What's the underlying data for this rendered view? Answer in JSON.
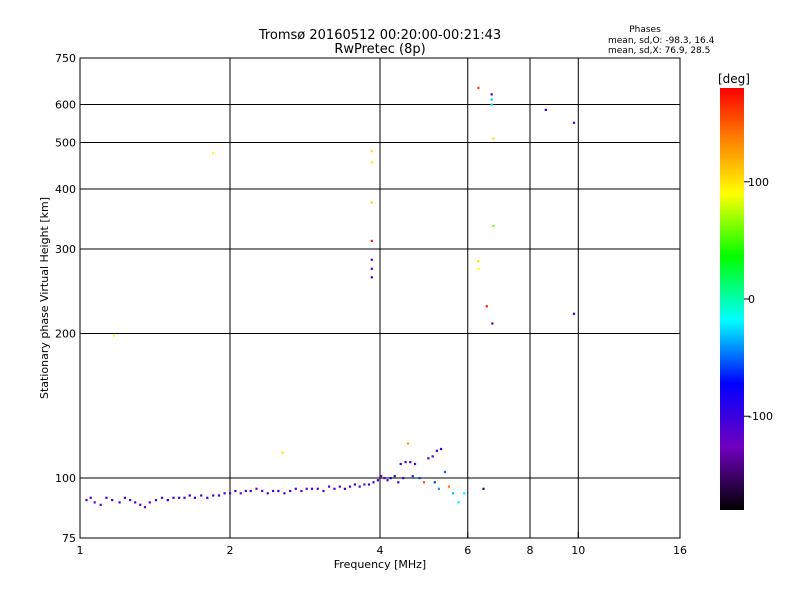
{
  "chart_data": {
    "type": "scatter",
    "title": "Tromsø 20160512 00:20:00-00:21:43",
    "subtitle": "RwPretec (8p)",
    "xlabel": "Frequency [MHz]",
    "ylabel": "Stationary phase Virtual Height [km]",
    "x_scale": "log",
    "y_scale": "log",
    "xlim": [
      1,
      16
    ],
    "ylim": [
      75,
      750
    ],
    "x_ticks": [
      1,
      2,
      4,
      6,
      8,
      10,
      16
    ],
    "x_tick_labels": [
      "1",
      "2",
      "4",
      "6",
      "8",
      "10",
      "16"
    ],
    "y_ticks": [
      75,
      100,
      200,
      300,
      400,
      500,
      600,
      750
    ],
    "y_tick_labels": [
      "75",
      "100",
      "200",
      "300",
      "400",
      "500",
      "600",
      "750"
    ],
    "grid": true,
    "stats": {
      "heading": "Phases",
      "line_o": "mean, sd,O: -98.3, 16.4",
      "line_x": "mean, sd,X:  76.9, 28.5"
    },
    "colorbar": {
      "label": "[deg]",
      "range": [
        -180,
        180
      ],
      "ticks": [
        100,
        0,
        -100
      ],
      "tick_labels": [
        "100",
        "0",
        "-100"
      ]
    },
    "points": [
      {
        "x": 1.03,
        "y": 90,
        "phase": -110
      },
      {
        "x": 1.05,
        "y": 91,
        "phase": -100
      },
      {
        "x": 1.07,
        "y": 89,
        "phase": -120
      },
      {
        "x": 1.1,
        "y": 88,
        "phase": -110
      },
      {
        "x": 1.13,
        "y": 91,
        "phase": -100
      },
      {
        "x": 1.16,
        "y": 90,
        "phase": -110
      },
      {
        "x": 1.2,
        "y": 89,
        "phase": -105
      },
      {
        "x": 1.23,
        "y": 91,
        "phase": -120
      },
      {
        "x": 1.26,
        "y": 90,
        "phase": -110
      },
      {
        "x": 1.29,
        "y": 89,
        "phase": -100
      },
      {
        "x": 1.32,
        "y": 88,
        "phase": -110
      },
      {
        "x": 1.35,
        "y": 87,
        "phase": -120
      },
      {
        "x": 1.38,
        "y": 89,
        "phase": -110
      },
      {
        "x": 1.42,
        "y": 90,
        "phase": -100
      },
      {
        "x": 1.46,
        "y": 91,
        "phase": -110
      },
      {
        "x": 1.5,
        "y": 90,
        "phase": -90
      },
      {
        "x": 1.54,
        "y": 91,
        "phase": -100
      },
      {
        "x": 1.58,
        "y": 91,
        "phase": -110
      },
      {
        "x": 1.62,
        "y": 91,
        "phase": -100
      },
      {
        "x": 1.66,
        "y": 92,
        "phase": -90
      },
      {
        "x": 1.7,
        "y": 91,
        "phase": -100
      },
      {
        "x": 1.75,
        "y": 92,
        "phase": -110
      },
      {
        "x": 1.8,
        "y": 91,
        "phase": -100
      },
      {
        "x": 1.85,
        "y": 92,
        "phase": -110
      },
      {
        "x": 1.9,
        "y": 92,
        "phase": -100
      },
      {
        "x": 1.95,
        "y": 93,
        "phase": -100
      },
      {
        "x": 2.0,
        "y": 93,
        "phase": -110
      },
      {
        "x": 2.05,
        "y": 94,
        "phase": -100
      },
      {
        "x": 2.1,
        "y": 93,
        "phase": -120
      },
      {
        "x": 2.15,
        "y": 94,
        "phase": -110
      },
      {
        "x": 2.2,
        "y": 94,
        "phase": -100
      },
      {
        "x": 2.26,
        "y": 95,
        "phase": -130
      },
      {
        "x": 2.32,
        "y": 94,
        "phase": -110
      },
      {
        "x": 2.38,
        "y": 93,
        "phase": -100
      },
      {
        "x": 2.44,
        "y": 94,
        "phase": -110
      },
      {
        "x": 2.5,
        "y": 94,
        "phase": -100
      },
      {
        "x": 2.57,
        "y": 93,
        "phase": -110
      },
      {
        "x": 2.64,
        "y": 94,
        "phase": -100
      },
      {
        "x": 2.71,
        "y": 95,
        "phase": -110
      },
      {
        "x": 2.78,
        "y": 94,
        "phase": -120
      },
      {
        "x": 2.85,
        "y": 95,
        "phase": -110
      },
      {
        "x": 2.92,
        "y": 95,
        "phase": -100
      },
      {
        "x": 3.0,
        "y": 95,
        "phase": -130
      },
      {
        "x": 3.08,
        "y": 94,
        "phase": -110
      },
      {
        "x": 3.16,
        "y": 96,
        "phase": -120
      },
      {
        "x": 3.24,
        "y": 95,
        "phase": -100
      },
      {
        "x": 3.32,
        "y": 96,
        "phase": -110
      },
      {
        "x": 3.4,
        "y": 95,
        "phase": -100
      },
      {
        "x": 3.48,
        "y": 96,
        "phase": -110
      },
      {
        "x": 3.56,
        "y": 97,
        "phase": -100
      },
      {
        "x": 3.64,
        "y": 96,
        "phase": -110
      },
      {
        "x": 3.72,
        "y": 97,
        "phase": -120
      },
      {
        "x": 3.8,
        "y": 97,
        "phase": -100
      },
      {
        "x": 3.88,
        "y": 98,
        "phase": -110
      },
      {
        "x": 3.96,
        "y": 99,
        "phase": -100
      },
      {
        "x": 4.02,
        "y": 101,
        "phase": -110
      },
      {
        "x": 4.08,
        "y": 100,
        "phase": -100
      },
      {
        "x": 4.14,
        "y": 99,
        "phase": -110
      },
      {
        "x": 4.2,
        "y": 100,
        "phase": -70
      },
      {
        "x": 4.28,
        "y": 101,
        "phase": -100
      },
      {
        "x": 4.35,
        "y": 98,
        "phase": -110
      },
      {
        "x": 4.45,
        "y": 100,
        "phase": -100
      },
      {
        "x": 4.4,
        "y": 107,
        "phase": -100
      },
      {
        "x": 4.5,
        "y": 108,
        "phase": -110
      },
      {
        "x": 4.6,
        "y": 108,
        "phase": -100
      },
      {
        "x": 4.7,
        "y": 107,
        "phase": -110
      },
      {
        "x": 4.55,
        "y": 118,
        "phase": 130
      },
      {
        "x": 4.65,
        "y": 101,
        "phase": -60
      },
      {
        "x": 4.8,
        "y": 100,
        "phase": -60
      },
      {
        "x": 4.9,
        "y": 98,
        "phase": 150
      },
      {
        "x": 5.0,
        "y": 110,
        "phase": -100
      },
      {
        "x": 5.1,
        "y": 111,
        "phase": -110
      },
      {
        "x": 5.2,
        "y": 114,
        "phase": -100
      },
      {
        "x": 5.3,
        "y": 115,
        "phase": -90
      },
      {
        "x": 5.15,
        "y": 98,
        "phase": -60
      },
      {
        "x": 5.25,
        "y": 95,
        "phase": -40
      },
      {
        "x": 5.4,
        "y": 103,
        "phase": -50
      },
      {
        "x": 5.5,
        "y": 96,
        "phase": 140
      },
      {
        "x": 5.6,
        "y": 93,
        "phase": -30
      },
      {
        "x": 5.75,
        "y": 89,
        "phase": -20
      },
      {
        "x": 5.9,
        "y": 93,
        "phase": -20
      },
      {
        "x": 6.45,
        "y": 95,
        "phase": -150
      },
      {
        "x": 1.17,
        "y": 198,
        "phase": 90
      },
      {
        "x": 1.85,
        "y": 475,
        "phase": 95
      },
      {
        "x": 2.55,
        "y": 113,
        "phase": 100
      },
      {
        "x": 3.85,
        "y": 480,
        "phase": 100
      },
      {
        "x": 3.85,
        "y": 455,
        "phase": 80
      },
      {
        "x": 3.85,
        "y": 375,
        "phase": 70
      },
      {
        "x": 3.85,
        "y": 312,
        "phase": 170
      },
      {
        "x": 3.85,
        "y": 285,
        "phase": -110
      },
      {
        "x": 3.85,
        "y": 273,
        "phase": -100
      },
      {
        "x": 3.85,
        "y": 262,
        "phase": -90
      },
      {
        "x": 6.3,
        "y": 650,
        "phase": 160
      },
      {
        "x": 6.3,
        "y": 283,
        "phase": 100
      },
      {
        "x": 6.3,
        "y": 273,
        "phase": 90
      },
      {
        "x": 6.55,
        "y": 228,
        "phase": 170
      },
      {
        "x": 6.72,
        "y": 210,
        "phase": -100
      },
      {
        "x": 6.7,
        "y": 630,
        "phase": -100
      },
      {
        "x": 6.7,
        "y": 615,
        "phase": -30
      },
      {
        "x": 6.7,
        "y": 600,
        "phase": -20
      },
      {
        "x": 6.75,
        "y": 510,
        "phase": 100
      },
      {
        "x": 6.75,
        "y": 335,
        "phase": 60
      },
      {
        "x": 8.6,
        "y": 585,
        "phase": -90
      },
      {
        "x": 9.8,
        "y": 550,
        "phase": -110
      },
      {
        "x": 9.8,
        "y": 220,
        "phase": -100
      }
    ]
  }
}
